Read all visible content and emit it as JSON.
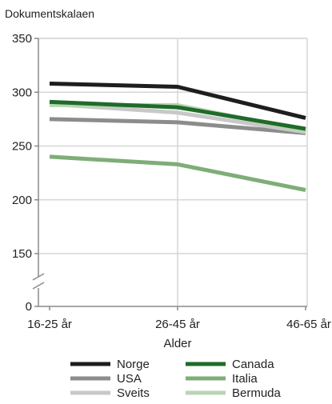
{
  "chart_data": {
    "type": "line",
    "title": "",
    "ylabel": "Dokumentskalaen",
    "xlabel": "Alder",
    "categories": [
      "16-25 år",
      "26-45 år",
      "46-65 år"
    ],
    "ylim": [
      0,
      350
    ],
    "y_axis_break": true,
    "yticks": [
      0,
      150,
      200,
      250,
      300,
      350
    ],
    "grid": true,
    "legend_position": "bottom",
    "series": [
      {
        "name": "Norge",
        "color": "#1e1e1e",
        "values": [
          308,
          305,
          276
        ]
      },
      {
        "name": "USA",
        "color": "#8c8c8c",
        "values": [
          275,
          272,
          262
        ]
      },
      {
        "name": "Sveits",
        "color": "#c8c8c8",
        "values": [
          289,
          281,
          263
        ]
      },
      {
        "name": "Canada",
        "color": "#1f6b2a",
        "values": [
          291,
          286,
          266
        ]
      },
      {
        "name": "Italia",
        "color": "#7fad78",
        "values": [
          240,
          233,
          209
        ]
      },
      {
        "name": "Bermuda",
        "color": "#b7d6b1",
        "values": [
          288,
          288,
          264
        ]
      }
    ]
  }
}
